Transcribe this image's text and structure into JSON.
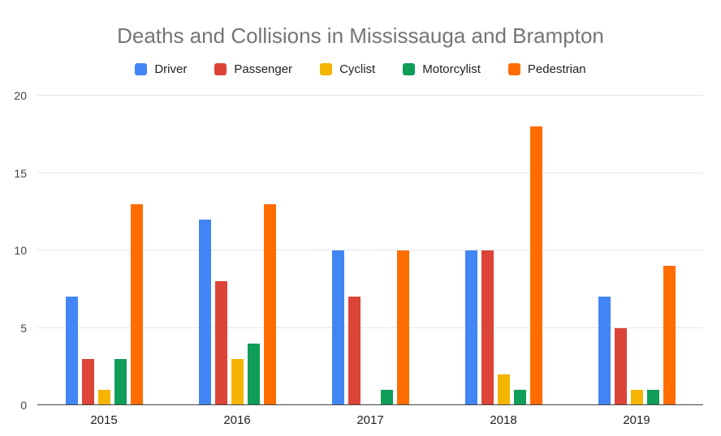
{
  "chart_data": {
    "type": "bar",
    "title": "Deaths and Collisions in Mississauga and Brampton",
    "categories": [
      "2015",
      "2016",
      "2017",
      "2018",
      "2019"
    ],
    "series": [
      {
        "name": "Driver",
        "color": "#4285F4",
        "values": [
          7,
          12,
          10,
          10,
          7
        ]
      },
      {
        "name": "Passenger",
        "color": "#DB4437",
        "values": [
          3,
          8,
          7,
          10,
          5
        ]
      },
      {
        "name": "Cyclist",
        "color": "#F4B400",
        "values": [
          1,
          3,
          0,
          2,
          1
        ]
      },
      {
        "name": "Motorcylist",
        "color": "#0F9D58",
        "values": [
          3,
          4,
          1,
          1,
          1
        ]
      },
      {
        "name": "Pedestrian",
        "color": "#FF6D00",
        "values": [
          13,
          13,
          10,
          18,
          9
        ]
      }
    ],
    "xlabel": "",
    "ylabel": "",
    "ylim": [
      0,
      20
    ],
    "yticks": [
      0,
      5,
      10,
      15,
      20
    ],
    "grid": true,
    "legend_position": "top",
    "colors": {
      "title_text": "#757575",
      "legend_text": "#212121",
      "axis_line": "#424242",
      "gridline": "#e6e6e6",
      "background": "#ffffff"
    }
  }
}
